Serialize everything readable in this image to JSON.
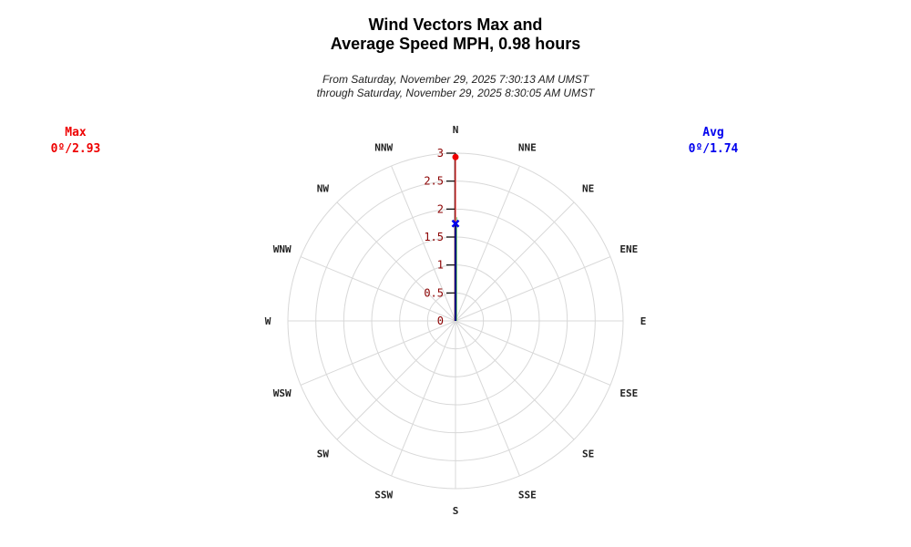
{
  "title": {
    "line1": "Wind Vectors Max and",
    "line2": "Average Speed MPH, 0.98 hours"
  },
  "subtitle": {
    "line1": "From Saturday, November 29, 2025 7:30:13 AM UMST",
    "line2": "through Saturday, November 29, 2025 8:30:05 AM UMST"
  },
  "legend": {
    "max": {
      "label": "Max",
      "value": "0º/2.93",
      "color": "#ee0000"
    },
    "avg": {
      "label": "Avg",
      "value": "0º/1.74",
      "color": "#0000ee"
    }
  },
  "compass": [
    "N",
    "NNE",
    "NE",
    "ENE",
    "E",
    "ESE",
    "SE",
    "SSE",
    "S",
    "SSW",
    "SW",
    "WSW",
    "W",
    "WNW",
    "NW",
    "NNW"
  ],
  "chart_data": {
    "type": "polar-vector",
    "title": "Wind Vectors Max and Average Speed MPH, 0.98 hours",
    "subtitle": "From Saturday, November 29, 2025 7:30:13 AM UMST through Saturday, November 29, 2025 8:30:05 AM UMST",
    "radial_axis": {
      "min": 0,
      "max": 3,
      "ticks": [
        "0",
        "0.5",
        "1",
        "1.5",
        "2",
        "2.5",
        "3"
      ],
      "unit": "MPH"
    },
    "angular_axis": {
      "labels": [
        "N",
        "NNE",
        "NE",
        "ENE",
        "E",
        "ESE",
        "SE",
        "SSE",
        "S",
        "SSW",
        "SW",
        "WSW",
        "W",
        "WNW",
        "NW",
        "NNW"
      ],
      "step_deg": 22.5
    },
    "grid": true,
    "series": [
      {
        "name": "Max",
        "direction_deg": 0,
        "speed": 2.93,
        "color": "#ee0000",
        "marker": "circle"
      },
      {
        "name": "Avg",
        "direction_deg": 0,
        "speed": 1.74,
        "color": "#0000ee",
        "marker": "x"
      }
    ],
    "legend_position": "top-left (Max), top-right (Avg)"
  }
}
